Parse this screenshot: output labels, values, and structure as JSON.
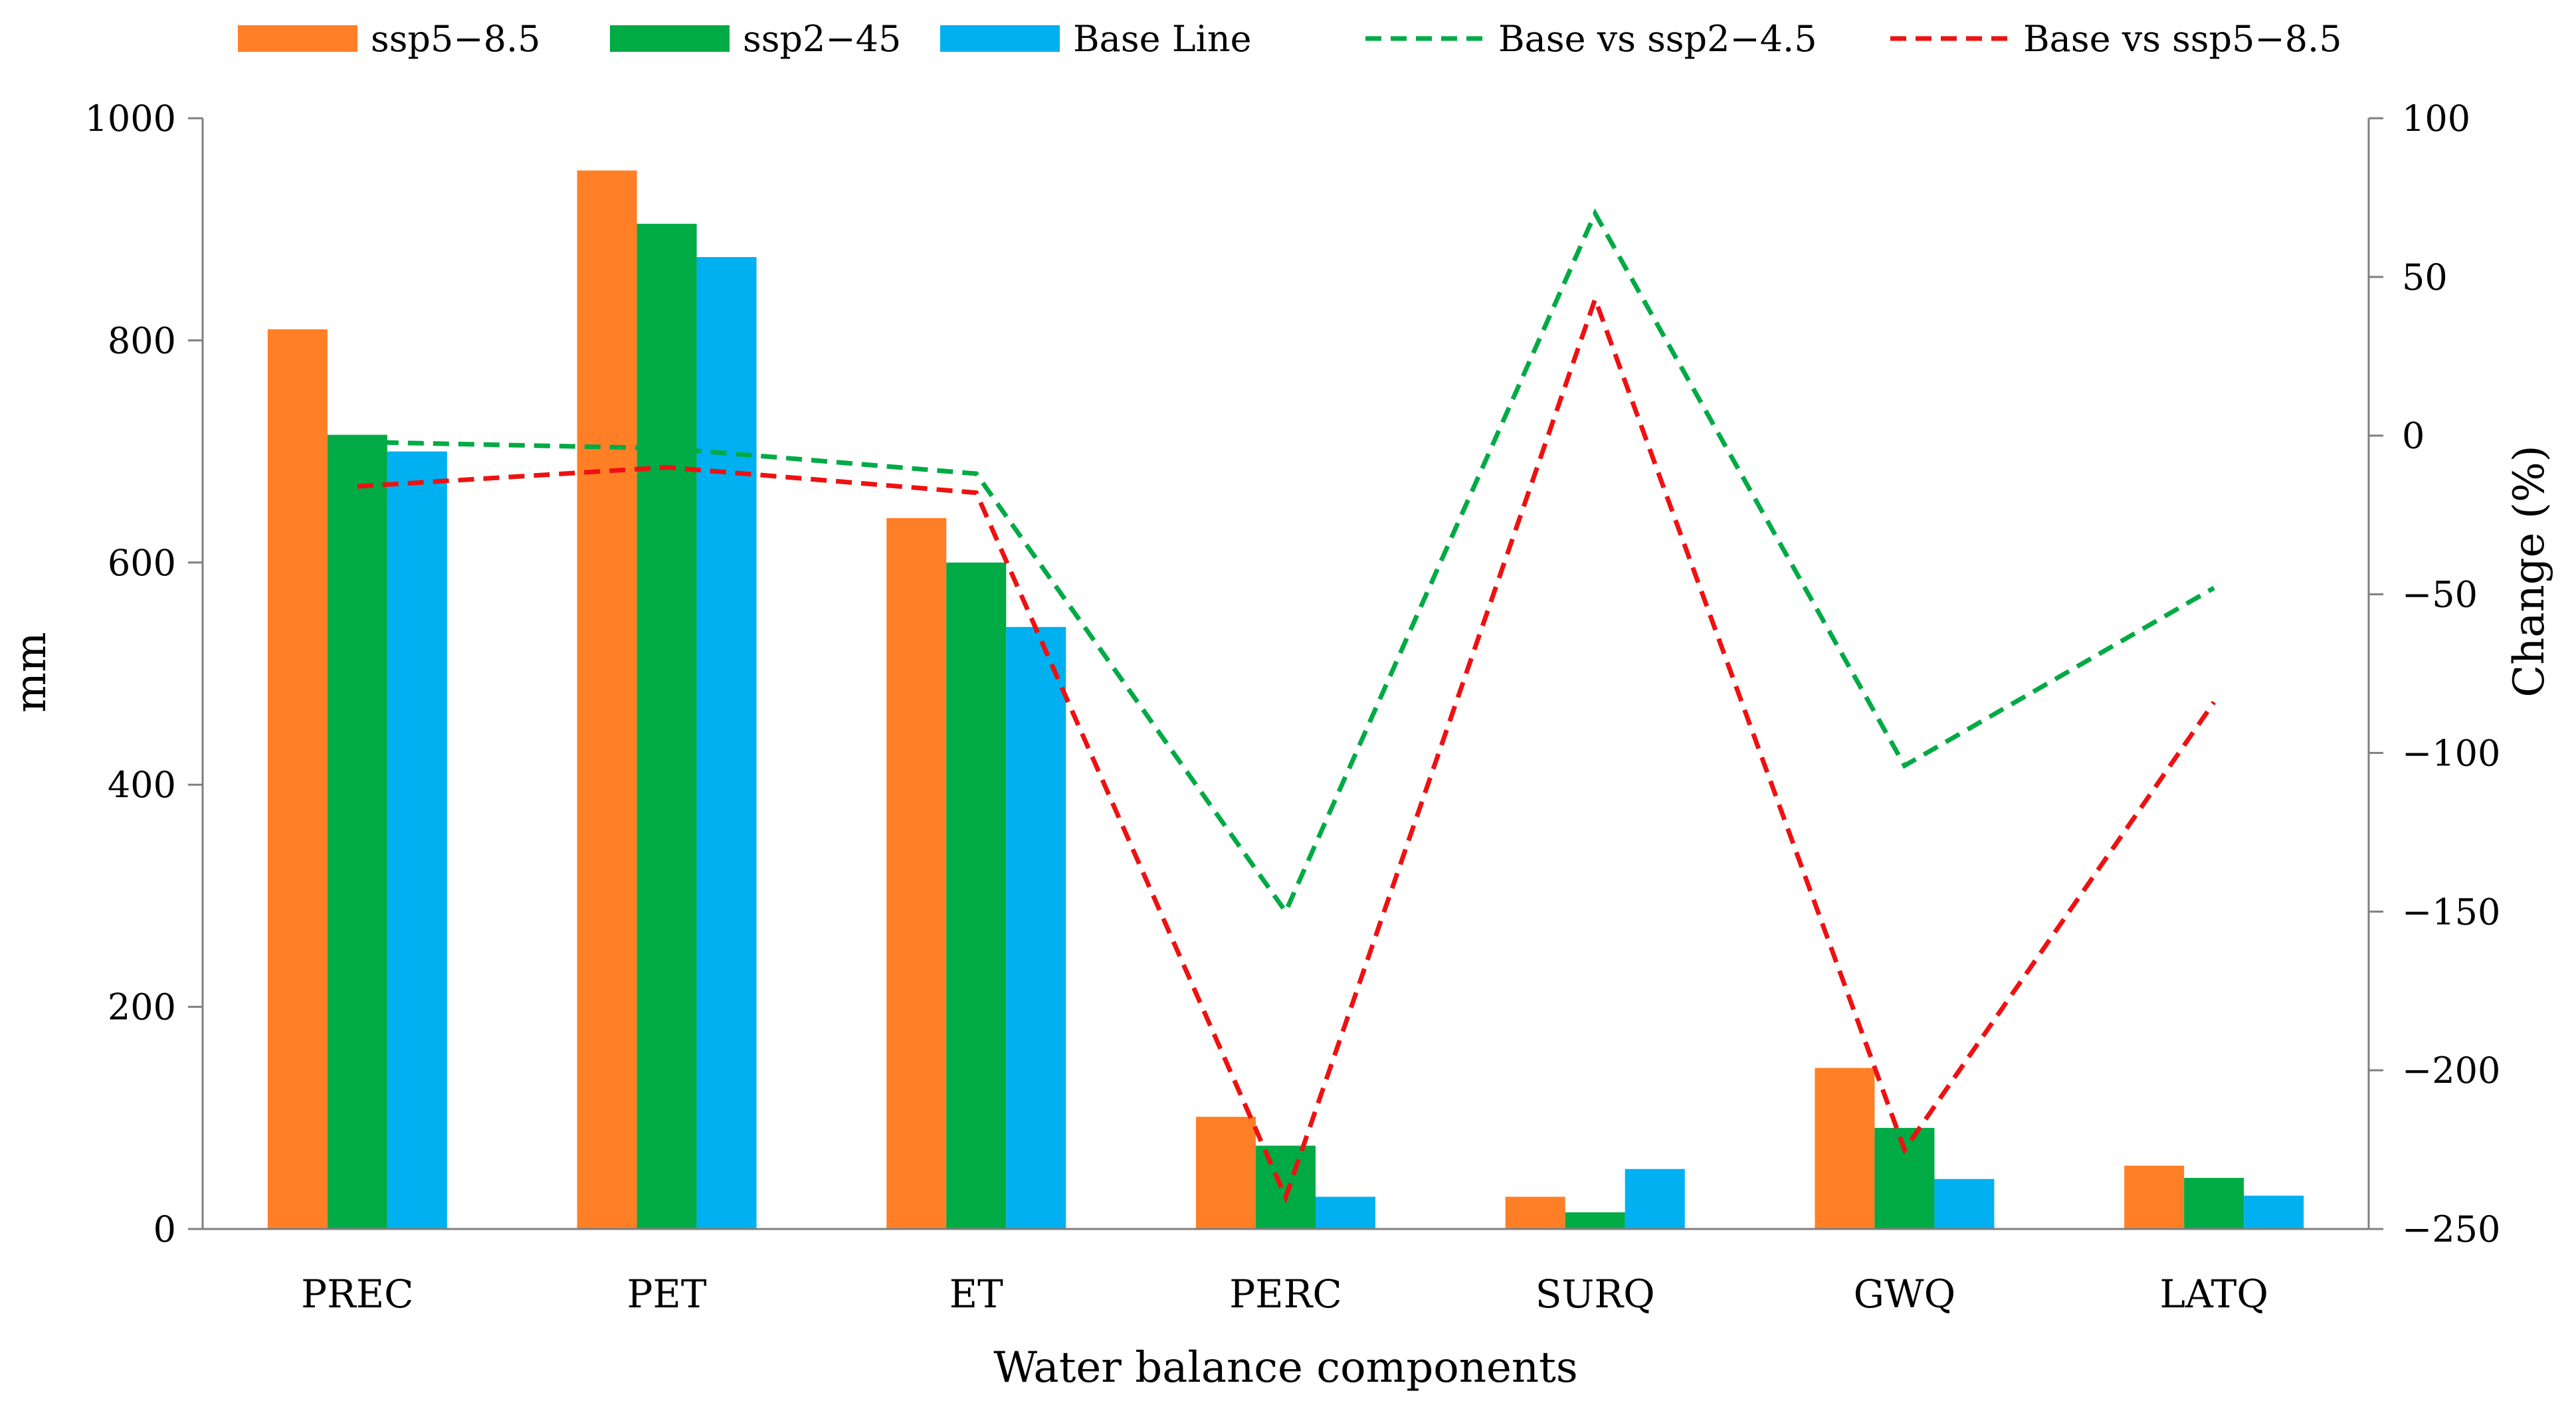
{
  "chart_data": {
    "type": "bar",
    "title": "",
    "xlabel": "Water balance components",
    "ylabel": "mm",
    "y2label": "Change (%)",
    "ylim": [
      0,
      1000
    ],
    "y2lim": [
      -250,
      100
    ],
    "yticks": [
      0,
      200,
      400,
      600,
      800,
      1000
    ],
    "y2ticks": [
      "100",
      "50",
      "0",
      "−50",
      "−100",
      "−150",
      "−200",
      "−250"
    ],
    "y2tick_values": [
      100,
      50,
      0,
      -50,
      -100,
      -150,
      -200,
      -250
    ],
    "grid": false,
    "legend_position": "top",
    "categories": [
      "PREC",
      "PET",
      "ET",
      "PERC",
      "SURQ",
      "GWQ",
      "LATQ"
    ],
    "series": [
      {
        "name": "ssp5−8.5",
        "color": "#FF7F27",
        "values": [
          810,
          953,
          640,
          101,
          29,
          145,
          57
        ]
      },
      {
        "name": "ssp2−45",
        "color": "#00AA44",
        "values": [
          715,
          905,
          600,
          75,
          15,
          91,
          46
        ]
      },
      {
        "name": "Base Line",
        "color": "#00B0F0",
        "values": [
          700,
          875,
          542,
          29,
          54,
          45,
          30
        ]
      }
    ],
    "lines": [
      {
        "name": "Base vs ssp2−4.5",
        "color": "#00AA44",
        "dashed": true,
        "axis": "right",
        "values": [
          -2,
          -4,
          -12,
          -150,
          70,
          -104,
          -48
        ]
      },
      {
        "name": "Base vs ssp5−8.5",
        "color": "#EE1111",
        "dashed": true,
        "axis": "right",
        "values": [
          -16,
          -10,
          -18,
          -240,
          43,
          -225,
          -84
        ]
      }
    ]
  }
}
